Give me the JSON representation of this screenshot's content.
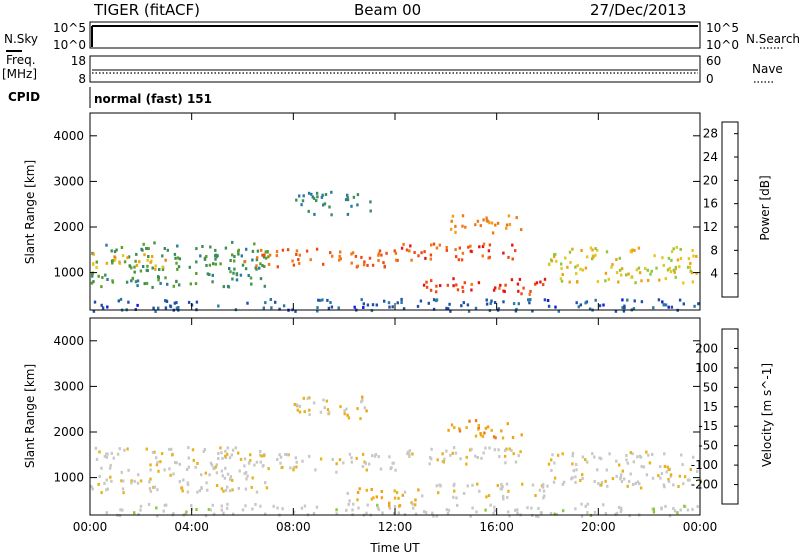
{
  "header": {
    "radar": "TIGER (fitACF)",
    "beam": "Beam 00",
    "date": "27/Dec/2013"
  },
  "summary": {
    "nsky_label": "N.Sky",
    "nsearch_label": "N.Search",
    "nsky_ticks": [
      "10^5",
      "10^0"
    ],
    "nsearch_ticks": [
      "10^5",
      "10^0"
    ],
    "freq_label": "Freq.",
    "freq_unit": "[MHz]",
    "freq_ticks": [
      "18",
      "8"
    ],
    "nave_label": "Nave",
    "nave_ticks": [
      "60",
      "0"
    ],
    "cpid_label": "CPID",
    "cpid_value": "normal (fast) 151"
  },
  "colors": {
    "power_scale": [
      "#1414e6",
      "#1f4fa8",
      "#2a7aa0",
      "#3d8c5a",
      "#5aa02a",
      "#8cc83a",
      "#e6c81a",
      "#f0a014",
      "#f07814",
      "#f04a14",
      "#e61414"
    ],
    "velocity_scale": [
      "#e61414",
      "#f04a14",
      "#f07814",
      "#f0a014",
      "#e6b41a",
      "#c8c8c8",
      "#c8c8c8",
      "#8cc83a",
      "#3d8c5a",
      "#2a5aa0",
      "#1414e6"
    ]
  },
  "chart_data": [
    {
      "type": "heatmap",
      "panel": "power",
      "ylabel": "Slant Range [km]",
      "ylim": [
        180,
        4500
      ],
      "y_ticks": [
        "1000",
        "2000",
        "3000",
        "4000"
      ],
      "x_ticks": [
        "00:00",
        "04:00",
        "08:00",
        "12:00",
        "16:00",
        "20:00",
        "00:00"
      ],
      "xlim_hours": [
        0,
        24
      ],
      "colorbar_label": "Power [dB]",
      "colorbar_ticks": [
        "4",
        "8",
        "12",
        "16",
        "20",
        "24",
        "28"
      ],
      "colorbar_range": [
        0,
        30
      ],
      "bands": [
        {
          "t0": 0,
          "t1": 7,
          "r0": 700,
          "r1": 1700,
          "value": 10
        },
        {
          "t0": 0,
          "t1": 3,
          "r0": 1100,
          "r1": 1450,
          "value": 20
        },
        {
          "t0": 6,
          "t1": 12,
          "r0": 1150,
          "r1": 1550,
          "value": 24
        },
        {
          "t0": 12,
          "t1": 17,
          "r0": 1300,
          "r1": 1700,
          "value": 26
        },
        {
          "t0": 13,
          "t1": 18,
          "r0": 550,
          "r1": 900,
          "value": 27
        },
        {
          "t0": 14,
          "t1": 17,
          "r0": 1900,
          "r1": 2300,
          "value": 22
        },
        {
          "t0": 18,
          "t1": 24,
          "r0": 800,
          "r1": 1600,
          "value": 18
        },
        {
          "t0": 8,
          "t1": 11,
          "r0": 2300,
          "r1": 2800,
          "value": 8
        },
        {
          "t0": 0,
          "t1": 24,
          "r0": 180,
          "r1": 450,
          "value": 5
        }
      ]
    },
    {
      "type": "heatmap",
      "panel": "velocity",
      "ylabel": "Slant Range [km]",
      "ylim": [
        180,
        4500
      ],
      "y_ticks": [
        "1000",
        "2000",
        "3000",
        "4000"
      ],
      "x_ticks": [
        "00:00",
        "04:00",
        "08:00",
        "12:00",
        "16:00",
        "20:00",
        "00:00"
      ],
      "xlim_hours": [
        0,
        24
      ],
      "xlabel": "Time UT",
      "colorbar_label": "Velocity [m s^-1]",
      "colorbar_ticks": [
        "200",
        "100",
        "50",
        "15",
        "-15",
        "-50",
        "-100",
        "-200"
      ],
      "colorbar_range": [
        -250,
        250
      ],
      "bands": [
        {
          "t0": 0,
          "t1": 7,
          "r0": 700,
          "r1": 1700,
          "value": 0
        },
        {
          "t0": 6,
          "t1": 12,
          "r0": 1150,
          "r1": 1550,
          "value": 0
        },
        {
          "t0": 12,
          "t1": 17,
          "r0": 1300,
          "r1": 1700,
          "value": 0
        },
        {
          "t0": 10,
          "t1": 13,
          "r0": 400,
          "r1": 800,
          "value": -60
        },
        {
          "t0": 13,
          "t1": 18,
          "r0": 550,
          "r1": 900,
          "value": 0
        },
        {
          "t0": 14,
          "t1": 17,
          "r0": 1900,
          "r1": 2300,
          "value": -80
        },
        {
          "t0": 18,
          "t1": 24,
          "r0": 800,
          "r1": 1600,
          "value": 0
        },
        {
          "t0": 8,
          "t1": 11,
          "r0": 2300,
          "r1": 2800,
          "value": -40
        },
        {
          "t0": 0,
          "t1": 24,
          "r0": 180,
          "r1": 450,
          "value": 30
        }
      ]
    }
  ]
}
